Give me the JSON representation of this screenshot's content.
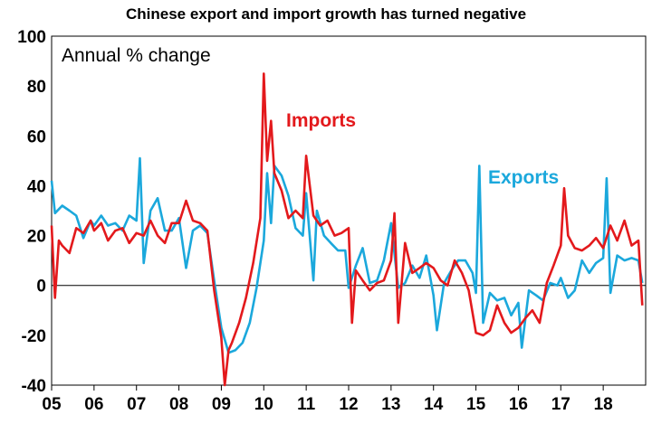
{
  "chart_data": {
    "type": "line",
    "title": "Chinese export and import growth has turned negative",
    "unit_label": "Annual % change",
    "ylim": [
      -40,
      100
    ],
    "y_ticks": [
      -40,
      -20,
      0,
      20,
      40,
      60,
      80,
      100
    ],
    "x_ticks": [
      "05",
      "06",
      "07",
      "08",
      "09",
      "10",
      "11",
      "12",
      "13",
      "14",
      "15",
      "16",
      "17",
      "18"
    ],
    "x_range": [
      2005,
      2019
    ],
    "grid": false,
    "series": [
      {
        "name": "Imports",
        "color": "#e3191c",
        "x": [
          2005.0,
          2005.08,
          2005.17,
          2005.25,
          2005.42,
          2005.58,
          2005.75,
          2005.92,
          2006.0,
          2006.17,
          2006.33,
          2006.5,
          2006.67,
          2006.83,
          2007.0,
          2007.17,
          2007.33,
          2007.5,
          2007.67,
          2007.83,
          2008.0,
          2008.17,
          2008.33,
          2008.5,
          2008.67,
          2008.83,
          2009.0,
          2009.08,
          2009.17,
          2009.25,
          2009.42,
          2009.58,
          2009.75,
          2009.92,
          2010.0,
          2010.08,
          2010.17,
          2010.25,
          2010.42,
          2010.58,
          2010.75,
          2010.92,
          2011.0,
          2011.17,
          2011.33,
          2011.5,
          2011.67,
          2011.83,
          2012.0,
          2012.08,
          2012.17,
          2012.33,
          2012.5,
          2012.67,
          2012.83,
          2013.0,
          2013.08,
          2013.17,
          2013.33,
          2013.5,
          2013.67,
          2013.83,
          2014.0,
          2014.17,
          2014.33,
          2014.5,
          2014.67,
          2014.83,
          2015.0,
          2015.17,
          2015.33,
          2015.5,
          2015.67,
          2015.83,
          2016.0,
          2016.17,
          2016.33,
          2016.5,
          2016.67,
          2016.83,
          2017.0,
          2017.08,
          2017.17,
          2017.33,
          2017.5,
          2017.67,
          2017.83,
          2018.0,
          2018.17,
          2018.33,
          2018.5,
          2018.67,
          2018.83,
          2018.92
        ],
        "values": [
          24,
          -5,
          18,
          16,
          13,
          23,
          21,
          26,
          22,
          25,
          18,
          22,
          23,
          17,
          21,
          20,
          26,
          20,
          17,
          25,
          25,
          34,
          26,
          25,
          22,
          -2,
          -21,
          -40,
          -26,
          -23,
          -15,
          -5,
          9,
          27,
          85,
          50,
          66,
          45,
          38,
          27,
          30,
          27,
          52,
          28,
          24,
          26,
          20,
          21,
          23,
          -15,
          6,
          2,
          -2,
          1,
          2,
          10,
          29,
          -15,
          17,
          5,
          7,
          9,
          7,
          2,
          0,
          10,
          5,
          -2,
          -19,
          -20,
          -18,
          -8,
          -15,
          -19,
          -17,
          -13,
          -10,
          -15,
          1,
          8,
          16,
          39,
          20,
          15,
          14,
          16,
          19,
          15,
          24,
          18,
          26,
          16,
          18,
          -8
        ]
      },
      {
        "name": "Exports",
        "color": "#1ba8dc",
        "x": [
          2005.0,
          2005.08,
          2005.25,
          2005.42,
          2005.58,
          2005.75,
          2005.92,
          2006.0,
          2006.17,
          2006.33,
          2006.5,
          2006.67,
          2006.83,
          2007.0,
          2007.08,
          2007.17,
          2007.33,
          2007.5,
          2007.67,
          2007.83,
          2008.0,
          2008.17,
          2008.33,
          2008.5,
          2008.67,
          2008.83,
          2009.0,
          2009.17,
          2009.33,
          2009.5,
          2009.67,
          2009.83,
          2010.0,
          2010.08,
          2010.17,
          2010.25,
          2010.42,
          2010.58,
          2010.75,
          2010.92,
          2011.0,
          2011.17,
          2011.25,
          2011.42,
          2011.58,
          2011.75,
          2011.92,
          2012.0,
          2012.17,
          2012.33,
          2012.5,
          2012.67,
          2012.83,
          2013.0,
          2013.17,
          2013.33,
          2013.5,
          2013.67,
          2013.83,
          2014.0,
          2014.08,
          2014.25,
          2014.42,
          2014.58,
          2014.75,
          2014.92,
          2015.0,
          2015.08,
          2015.17,
          2015.33,
          2015.5,
          2015.67,
          2015.83,
          2016.0,
          2016.08,
          2016.25,
          2016.42,
          2016.58,
          2016.75,
          2016.92,
          2017.0,
          2017.17,
          2017.33,
          2017.5,
          2017.67,
          2017.83,
          2018.0,
          2018.08,
          2018.17,
          2018.33,
          2018.5,
          2018.67,
          2018.83,
          2018.92
        ],
        "values": [
          42,
          29,
          32,
          30,
          28,
          19,
          26,
          24,
          28,
          24,
          25,
          22,
          28,
          26,
          51,
          9,
          30,
          35,
          22,
          22,
          27,
          7,
          22,
          24,
          21,
          2,
          -17,
          -27,
          -26,
          -23,
          -15,
          -1,
          18,
          45,
          25,
          48,
          44,
          36,
          23,
          20,
          37,
          2,
          30,
          20,
          17,
          14,
          14,
          -1,
          8,
          15,
          1,
          2,
          10,
          25,
          -1,
          1,
          8,
          3,
          12,
          -4,
          -18,
          1,
          6,
          10,
          10,
          5,
          -3,
          48,
          -15,
          -3,
          -6,
          -5,
          -12,
          -7,
          -25,
          -2,
          -4,
          -6,
          1,
          0,
          3,
          -5,
          -2,
          10,
          5,
          9,
          11,
          43,
          -3,
          12,
          10,
          11,
          10,
          1
        ]
      }
    ]
  }
}
